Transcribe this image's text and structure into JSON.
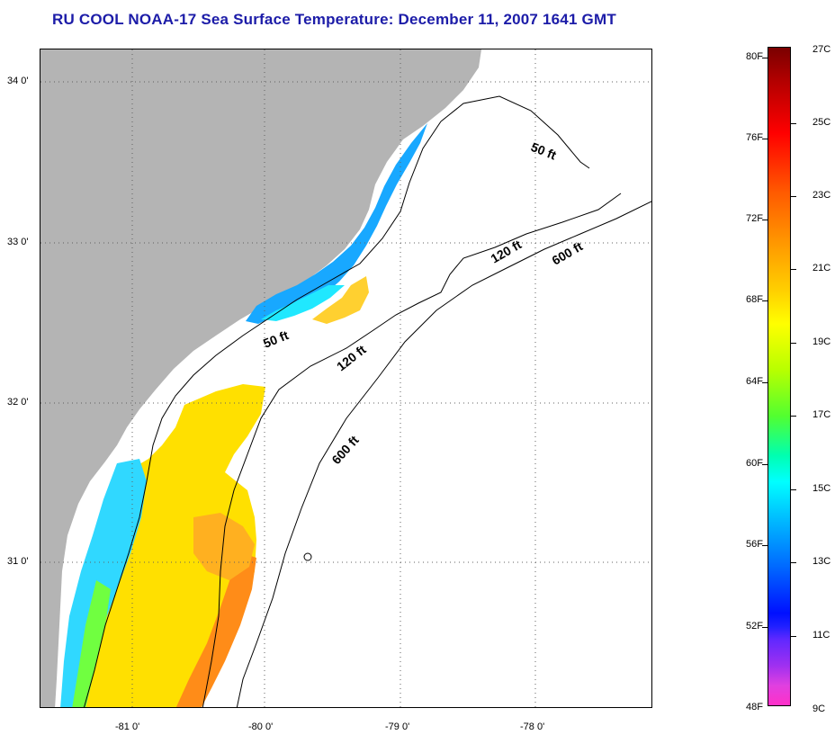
{
  "title": "RU COOL  NOAA-17  Sea Surface Temperature:  December 11, 2007 1641 GMT",
  "map": {
    "lat_labels": [
      "34 0'",
      "33 0'",
      "32 0'",
      "31 0'"
    ],
    "lon_labels": [
      "-81 0'",
      "-80 0'",
      "-79 0'",
      "-78 0'"
    ],
    "isobath_labels": [
      "50 ft",
      "120 ft",
      "600 ft",
      "50 ft",
      "120 ft",
      "600 ft"
    ],
    "land_color": "#b4b4b4",
    "isobath_color": "#000000"
  },
  "colorbar": {
    "fahrenheit_labels": [
      "80F",
      "76F",
      "72F",
      "68F",
      "64F",
      "60F",
      "56F",
      "52F",
      "48F"
    ],
    "celsius_labels": [
      "27C",
      "25C",
      "23C",
      "21C",
      "19C",
      "17C",
      "15C",
      "13C",
      "11C",
      "9C"
    ]
  }
}
